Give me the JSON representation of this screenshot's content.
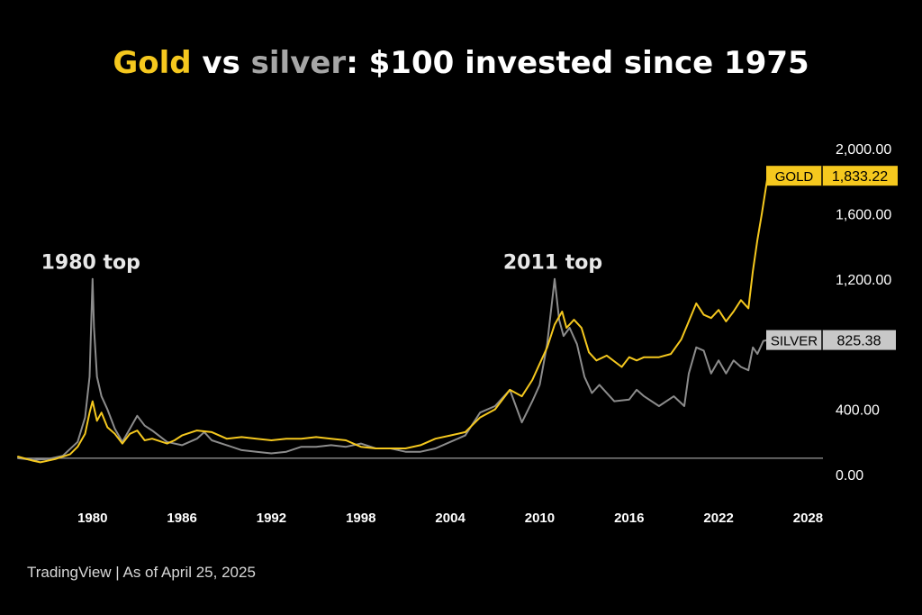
{
  "title": {
    "part1": "Gold",
    "part2": " vs ",
    "part3": "silver",
    "part4": ": $100 invested since 1975",
    "gold_color": "#f5c81e",
    "silver_color": "#a6a6a6",
    "rest_color": "#ffffff"
  },
  "footer": "TradingView | As of April 25, 2025",
  "chart_data": {
    "type": "line",
    "xlim": [
      1975,
      2029
    ],
    "ylim": [
      0,
      2000
    ],
    "baseline": 100,
    "x_ticks": [
      "1980",
      "1986",
      "1992",
      "1998",
      "2004",
      "2010",
      "2016",
      "2022",
      "2028"
    ],
    "y_ticks": [
      "2,000.00",
      "1,600.00",
      "1,200.00",
      "400.00",
      "0.00"
    ],
    "grid": false,
    "annotations": [
      {
        "text": "1980 top",
        "x": 1980,
        "y": 1180
      },
      {
        "text": "2011 top",
        "x": 2011,
        "y": 1180
      }
    ],
    "series": [
      {
        "name": "GOLD",
        "last_label": "1,833.22",
        "color": "#f5c81e",
        "x": [
          1975.0,
          1976.0,
          1976.5,
          1977.5,
          1978.5,
          1979.0,
          1979.5,
          1979.8,
          1980.0,
          1980.3,
          1980.6,
          1981.0,
          1981.5,
          1982.0,
          1982.5,
          1983.0,
          1983.5,
          1984.0,
          1985.0,
          1985.5,
          1986.0,
          1987.0,
          1988.0,
          1989.0,
          1990.0,
          1991.0,
          1992.0,
          1993.0,
          1994.0,
          1995.0,
          1996.0,
          1997.0,
          1998.0,
          1999.0,
          2000.0,
          2001.0,
          2002.0,
          2003.0,
          2004.0,
          2005.0,
          2006.0,
          2007.0,
          2008.0,
          2008.8,
          2009.5,
          2010.0,
          2010.5,
          2011.0,
          2011.5,
          2011.8,
          2012.3,
          2012.8,
          2013.3,
          2013.8,
          2014.5,
          2015.5,
          2016.0,
          2016.5,
          2017.0,
          2018.0,
          2018.8,
          2019.5,
          2020.0,
          2020.5,
          2021.0,
          2021.5,
          2022.0,
          2022.5,
          2023.0,
          2023.5,
          2024.0,
          2024.3,
          2024.6,
          2024.9,
          2025.3
        ],
        "values": [
          110,
          85,
          75,
          95,
          125,
          170,
          250,
          380,
          450,
          330,
          380,
          290,
          250,
          190,
          250,
          270,
          210,
          220,
          190,
          210,
          240,
          270,
          260,
          220,
          230,
          220,
          210,
          220,
          220,
          230,
          220,
          210,
          170,
          160,
          160,
          160,
          180,
          220,
          240,
          260,
          350,
          400,
          520,
          480,
          580,
          680,
          780,
          920,
          1000,
          900,
          950,
          900,
          750,
          700,
          730,
          660,
          720,
          700,
          720,
          720,
          740,
          830,
          940,
          1050,
          980,
          960,
          1010,
          940,
          1000,
          1070,
          1020,
          1250,
          1440,
          1600,
          1833.22
        ]
      },
      {
        "name": "SILVER",
        "last_label": "825.38",
        "color": "#8c8c8c",
        "x": [
          1975.0,
          1976.0,
          1977.0,
          1978.0,
          1979.0,
          1979.5,
          1979.8,
          1980.0,
          1980.1,
          1980.3,
          1980.6,
          1981.0,
          1981.5,
          1982.0,
          1982.5,
          1983.0,
          1983.5,
          1984.0,
          1985.0,
          1986.0,
          1987.0,
          1987.5,
          1988.0,
          1989.0,
          1990.0,
          1991.0,
          1992.0,
          1993.0,
          1994.0,
          1995.0,
          1996.0,
          1997.0,
          1998.0,
          1999.0,
          2000.0,
          2001.0,
          2002.0,
          2003.0,
          2004.0,
          2005.0,
          2006.0,
          2007.0,
          2008.0,
          2008.8,
          2009.5,
          2010.0,
          2010.5,
          2011.0,
          2011.3,
          2011.6,
          2012.0,
          2012.5,
          2013.0,
          2013.5,
          2014.0,
          2015.0,
          2016.0,
          2016.5,
          2017.0,
          2018.0,
          2019.0,
          2019.7,
          2020.0,
          2020.5,
          2021.0,
          2021.5,
          2022.0,
          2022.5,
          2023.0,
          2023.5,
          2024.0,
          2024.3,
          2024.6,
          2025.0,
          2025.3
        ],
        "values": [
          100,
          90,
          95,
          115,
          200,
          350,
          600,
          1200,
          900,
          600,
          480,
          400,
          280,
          200,
          280,
          360,
          300,
          270,
          200,
          180,
          220,
          260,
          210,
          180,
          150,
          140,
          130,
          140,
          170,
          170,
          180,
          170,
          190,
          160,
          160,
          140,
          140,
          160,
          200,
          240,
          380,
          420,
          520,
          320,
          450,
          550,
          800,
          1200,
          950,
          850,
          900,
          800,
          600,
          500,
          550,
          450,
          460,
          520,
          480,
          420,
          480,
          420,
          620,
          780,
          760,
          620,
          700,
          620,
          700,
          660,
          640,
          780,
          740,
          820,
          825.38
        ]
      }
    ]
  }
}
